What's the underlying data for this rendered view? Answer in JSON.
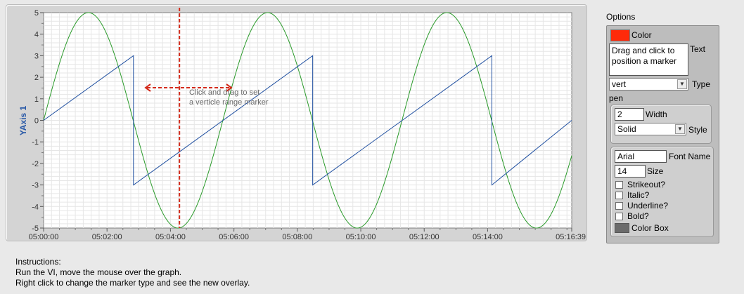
{
  "graph": {
    "yaxis_label": "YAxis 1",
    "x_ticks": [
      "05:00:00",
      "05:02:00",
      "05:04:00",
      "05:06:00",
      "05:08:00",
      "05:10:00",
      "05:12:00",
      "05:14:00",
      "05:16:39"
    ],
    "y_ticks": [
      "5",
      "4",
      "3",
      "2",
      "1",
      "0",
      "-1",
      "-2",
      "-3",
      "-4",
      "-5"
    ],
    "annotation_line1": "Click and drag to set",
    "annotation_line2": "a verticle range marker",
    "colors": {
      "sine": "#2a9a2a",
      "sawtooth": "#1f4fa0",
      "marker": "#d42a1a",
      "grid": "#e6e6e6",
      "axis_label": "#2a5aa8"
    }
  },
  "chart_data": {
    "type": "line",
    "x": {
      "start": "05:00:00",
      "end": "05:16:39",
      "ticks": [
        "05:00:00",
        "05:02:00",
        "05:04:00",
        "05:06:00",
        "05:08:00",
        "05:10:00",
        "05:12:00",
        "05:14:00",
        "05:16:39"
      ]
    },
    "ylabel": "YAxis 1",
    "ylim": [
      -5,
      5
    ],
    "grid": true,
    "series": [
      {
        "kind": "sine",
        "amplitude": 5,
        "x": [
          "05:00:00",
          "05:01:25",
          "05:02:50",
          "05:04:14",
          "05:05:39",
          "05:07:04",
          "05:08:29",
          "05:09:53",
          "05:11:18",
          "05:12:43",
          "05:14:08",
          "05:15:32"
        ],
        "values": [
          0,
          5,
          0,
          -5,
          0,
          5,
          0,
          -5,
          0,
          5,
          0,
          -5
        ]
      },
      {
        "kind": "sawtooth",
        "x": [
          "05:00:00",
          "05:02:50",
          "05:02:50",
          "05:08:29",
          "05:08:29",
          "05:14:08",
          "05:14:08",
          "05:16:39"
        ],
        "values": [
          0,
          3,
          -3,
          3,
          -3,
          3,
          -3,
          0
        ]
      }
    ],
    "marker": {
      "orientation": "vert",
      "x": "05:04:17"
    }
  },
  "options": {
    "title": "Options",
    "color_label": "Color",
    "text_value": "Drag and click to position a marker",
    "text_label": "Text",
    "type_value": "vert",
    "type_label": "Type",
    "pen_label": "pen",
    "width_value": "2",
    "width_label": "Width",
    "style_value": "Solid",
    "style_label": "Style",
    "font_name_value": "Arial",
    "font_name_label": "Font Name",
    "size_value": "14",
    "size_label": "Size",
    "strikeout_label": "Strikeout?",
    "italic_label": "Italic?",
    "underline_label": "Underline?",
    "bold_label": "Bold?",
    "color_box_label": "Color Box",
    "marker_color": "#ff2a0a"
  },
  "instructions": {
    "line1": "Instructions:",
    "line2": "Run the VI, move the mouse over the graph.",
    "line3": "Right click to change the marker type and see the new overlay."
  }
}
